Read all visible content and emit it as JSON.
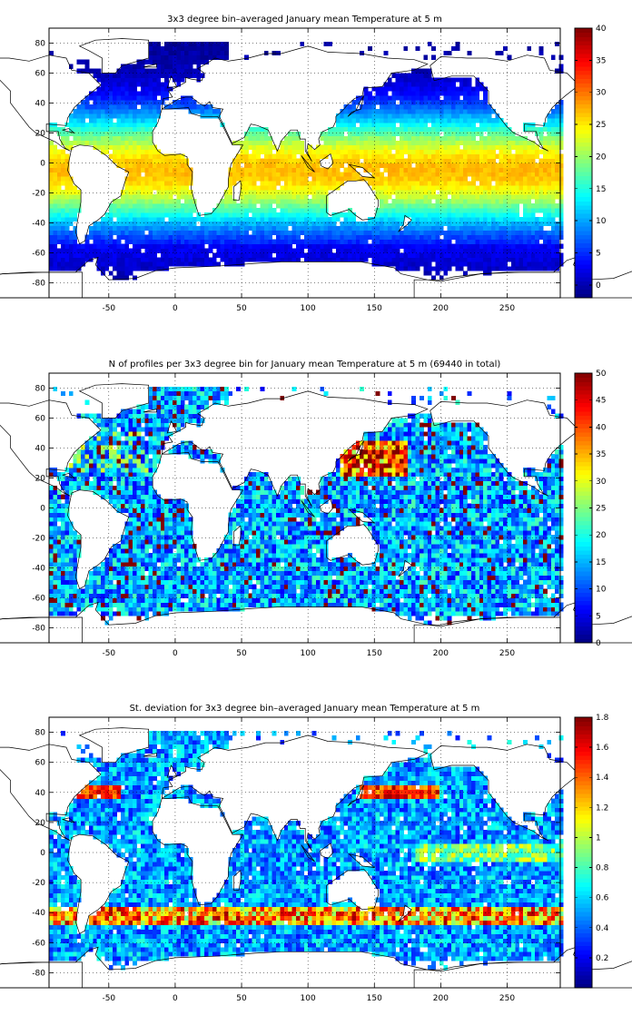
{
  "chart_data": [
    {
      "type": "heatmap",
      "title": "3x3 degree bin–averaged January mean Temperature at 5 m",
      "x_ticks": [
        -50,
        0,
        50,
        100,
        150,
        200,
        250
      ],
      "y_ticks": [
        -80,
        -60,
        -40,
        -20,
        0,
        20,
        40,
        60,
        80
      ],
      "xlim": [
        -95,
        290
      ],
      "ylim": [
        -90,
        90
      ],
      "grid": true,
      "bin_size_deg": 3,
      "colormap": "jet",
      "colorbar": {
        "min": -2,
        "max": 40,
        "ticks": [
          0,
          5,
          10,
          15,
          20,
          25,
          30,
          35,
          40
        ]
      }
    },
    {
      "type": "heatmap",
      "title": "N of profiles per 3x3 degree bin for January mean Temperature at 5 m (69440 in total)",
      "x_ticks": [
        -50,
        0,
        50,
        100,
        150,
        200,
        250
      ],
      "y_ticks": [
        -80,
        -60,
        -40,
        -20,
        0,
        20,
        40,
        60,
        80
      ],
      "xlim": [
        -95,
        290
      ],
      "ylim": [
        -90,
        90
      ],
      "grid": true,
      "bin_size_deg": 3,
      "colormap": "jet",
      "colorbar": {
        "min": 0,
        "max": 50,
        "ticks": [
          0,
          5,
          10,
          15,
          20,
          25,
          30,
          35,
          40,
          45,
          50
        ]
      }
    },
    {
      "type": "heatmap",
      "title": "St. deviation for 3x3 degree bin–averaged January mean Temperature at 5 m",
      "x_ticks": [
        -50,
        0,
        50,
        100,
        150,
        200,
        250
      ],
      "y_ticks": [
        -80,
        -60,
        -40,
        -20,
        0,
        20,
        40,
        60,
        80
      ],
      "xlim": [
        -95,
        290
      ],
      "ylim": [
        -90,
        90
      ],
      "grid": true,
      "bin_size_deg": 3,
      "colormap": "jet",
      "colorbar": {
        "min": 0,
        "max": 1.8,
        "ticks": [
          0.2,
          0.4,
          0.6,
          0.8,
          1,
          1.2,
          1.4,
          1.6,
          1.8
        ]
      }
    }
  ]
}
